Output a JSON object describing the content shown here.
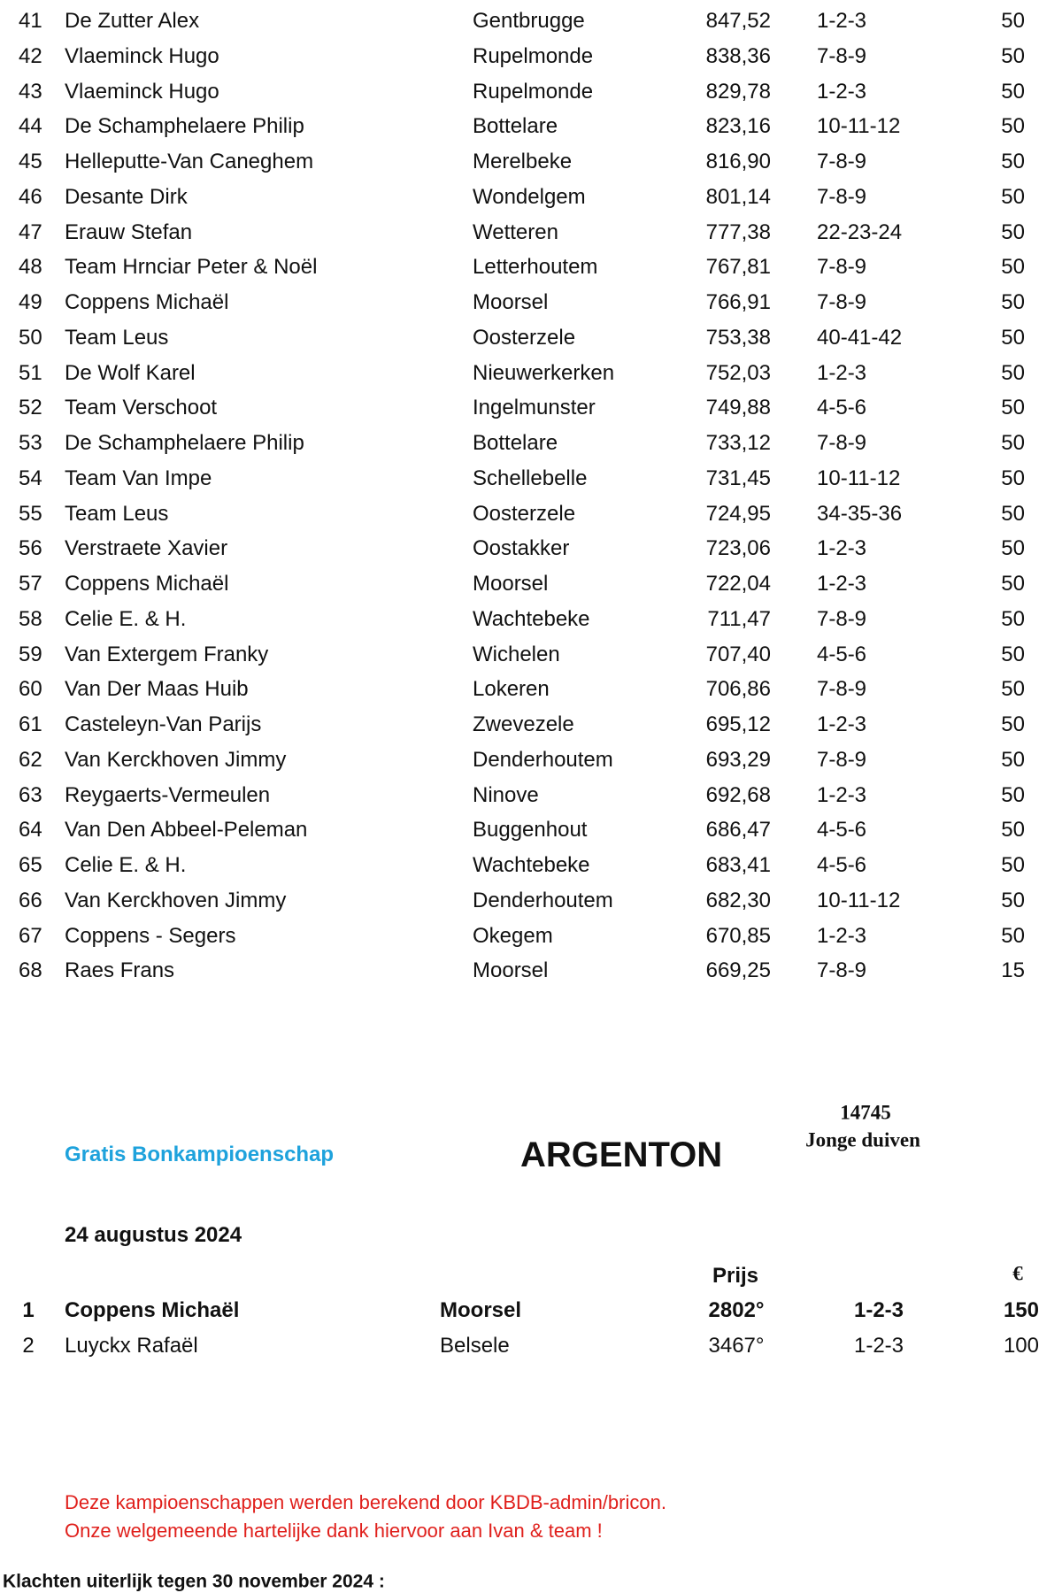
{
  "ranking": {
    "rows": [
      [
        "41",
        "De Zutter Alex",
        "Gentbrugge",
        "847,52",
        "1-2-3",
        "50"
      ],
      [
        "42",
        "Vlaeminck Hugo",
        "Rupelmonde",
        "838,36",
        "7-8-9",
        "50"
      ],
      [
        "43",
        "Vlaeminck Hugo",
        "Rupelmonde",
        "829,78",
        "1-2-3",
        "50"
      ],
      [
        "44",
        "De Schamphelaere Philip",
        "Bottelare",
        "823,16",
        "10-11-12",
        "50"
      ],
      [
        "45",
        "Helleputte-Van Caneghem",
        "Merelbeke",
        "816,90",
        "7-8-9",
        "50"
      ],
      [
        "46",
        "Desante Dirk",
        "Wondelgem",
        "801,14",
        "7-8-9",
        "50"
      ],
      [
        "47",
        "Erauw Stefan",
        "Wetteren",
        "777,38",
        "22-23-24",
        "50"
      ],
      [
        "48",
        "Team Hrnciar Peter & Noël",
        "Letterhoutem",
        "767,81",
        "7-8-9",
        "50"
      ],
      [
        "49",
        "Coppens Michaël",
        "Moorsel",
        "766,91",
        "7-8-9",
        "50"
      ],
      [
        "50",
        "Team Leus",
        "Oosterzele",
        "753,38",
        "40-41-42",
        "50"
      ],
      [
        "51",
        "De Wolf Karel",
        "Nieuwerkerken",
        "752,03",
        "1-2-3",
        "50"
      ],
      [
        "52",
        "Team Verschoot",
        "Ingelmunster",
        "749,88",
        "4-5-6",
        "50"
      ],
      [
        "53",
        "De Schamphelaere Philip",
        "Bottelare",
        "733,12",
        "7-8-9",
        "50"
      ],
      [
        "54",
        "Team Van Impe",
        "Schellebelle",
        "731,45",
        "10-11-12",
        "50"
      ],
      [
        "55",
        "Team Leus",
        "Oosterzele",
        "724,95",
        "34-35-36",
        "50"
      ],
      [
        "56",
        "Verstraete Xavier",
        "Oostakker",
        "723,06",
        "1-2-3",
        "50"
      ],
      [
        "57",
        "Coppens Michaël",
        "Moorsel",
        "722,04",
        "1-2-3",
        "50"
      ],
      [
        "58",
        "Celie E. & H.",
        "Wachtebeke",
        "711,47",
        "7-8-9",
        "50"
      ],
      [
        "59",
        "Van Extergem Franky",
        "Wichelen",
        "707,40",
        "4-5-6",
        "50"
      ],
      [
        "60",
        "Van Der Maas Huib",
        "Lokeren",
        "706,86",
        "7-8-9",
        "50"
      ],
      [
        "61",
        "Casteleyn-Van Parijs",
        "Zwevezele",
        "695,12",
        "1-2-3",
        "50"
      ],
      [
        "62",
        "Van Kerckhoven Jimmy",
        "Denderhoutem",
        "693,29",
        "7-8-9",
        "50"
      ],
      [
        "63",
        "Reygaerts-Vermeulen",
        "Ninove",
        "692,68",
        "1-2-3",
        "50"
      ],
      [
        "64",
        "Van Den Abbeel-Peleman",
        "Buggenhout",
        "686,47",
        "4-5-6",
        "50"
      ],
      [
        "65",
        "Celie E. & H.",
        "Wachtebeke",
        "683,41",
        "4-5-6",
        "50"
      ],
      [
        "66",
        "Van Kerckhoven Jimmy",
        "Denderhoutem",
        "682,30",
        "10-11-12",
        "50"
      ],
      [
        "67",
        "Coppens - Segers",
        "Okegem",
        "670,85",
        "1-2-3",
        "50"
      ],
      [
        "68",
        "Raes Frans",
        "Moorsel",
        "669,25",
        "7-8-9",
        "15"
      ]
    ]
  },
  "section": {
    "subtitle": "Gratis Bonkampioenschap",
    "title": "ARGENTON",
    "count": "14745",
    "category": "Jonge duiven",
    "date": "24 augustus 2024",
    "headers": {
      "prize": "Prijs",
      "amount": "€"
    },
    "rows": [
      [
        "1",
        "Coppens Michaël",
        "Moorsel",
        "2802°",
        "1-2-3",
        "150"
      ],
      [
        "2",
        "Luyckx Rafaël",
        "Belsele",
        "3467°",
        "1-2-3",
        "100"
      ]
    ]
  },
  "notes": [
    "Deze kampioenschappen werden berekend door KBDB-admin/bricon.",
    "Onze welgemeende hartelijke dank hiervoor aan Ivan & team !"
  ],
  "footer": "Klachten uiterlijk tegen 30 november 2024 :"
}
